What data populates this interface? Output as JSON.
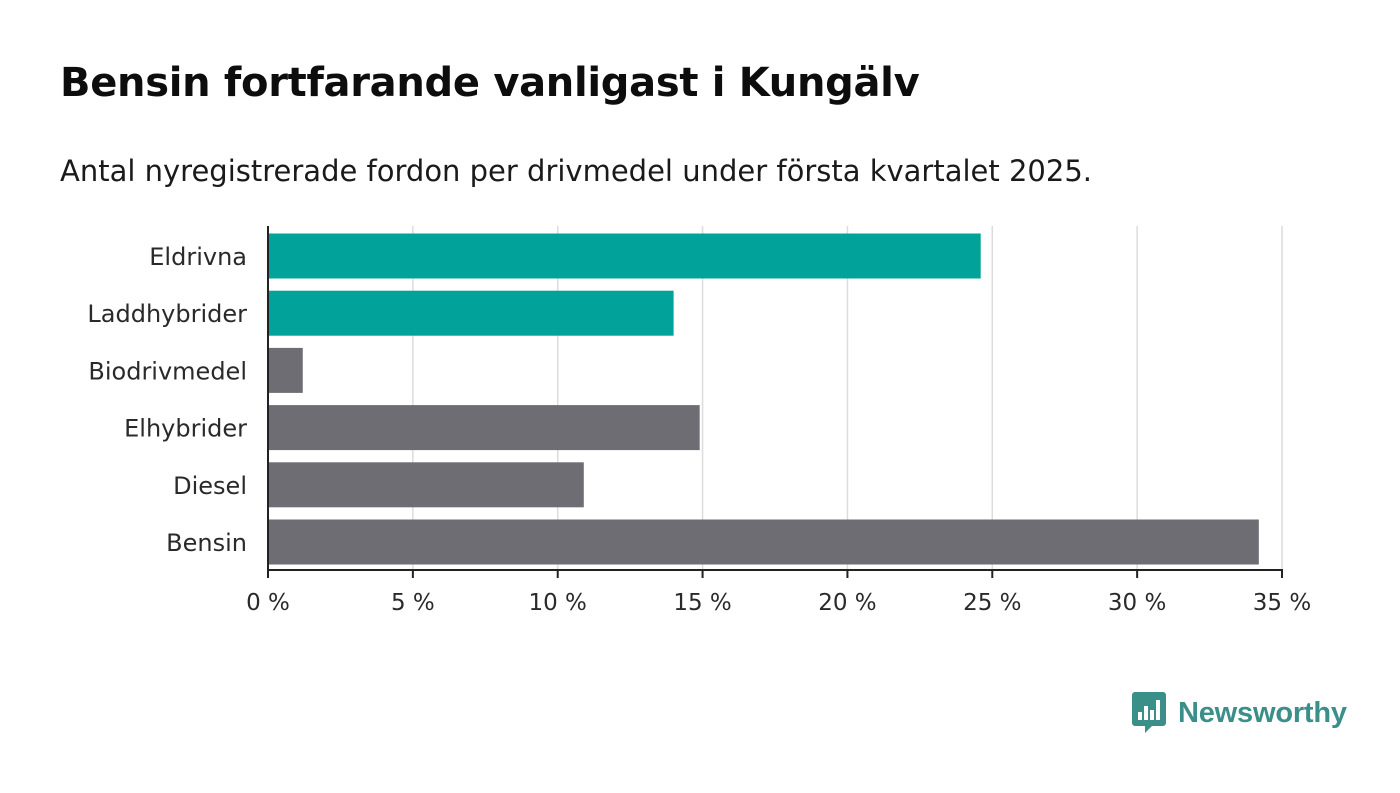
{
  "header": {
    "title": "Bensin fortfarande vanligast i Kungälv",
    "subtitle": "Antal nyregistrerade fordon per drivmedel under första kvartalet 2025."
  },
  "brand": {
    "name": "Newsworthy",
    "color": "#3a8f89",
    "icon": "bar-chart-speech-bubble-icon"
  },
  "colors": {
    "highlight": "#00a29a",
    "default": "#6e6d73",
    "grid": "#dcdcdc",
    "axis": "#222222"
  },
  "chart_data": {
    "type": "bar",
    "orientation": "horizontal",
    "categories": [
      "Eldrivna",
      "Laddhybrider",
      "Biodrivmedel",
      "Elhybrider",
      "Diesel",
      "Bensin"
    ],
    "values": [
      24.6,
      14.0,
      1.2,
      14.9,
      10.9,
      34.2
    ],
    "highlighted": [
      true,
      true,
      false,
      false,
      false,
      false
    ],
    "xlim": [
      0,
      35
    ],
    "xticks": [
      0,
      5,
      10,
      15,
      20,
      25,
      30,
      35
    ],
    "xtick_labels": [
      "0 %",
      "5 %",
      "10 %",
      "15 %",
      "20 %",
      "25 %",
      "30 %",
      "35 %"
    ],
    "grid": true,
    "legend": "none"
  }
}
